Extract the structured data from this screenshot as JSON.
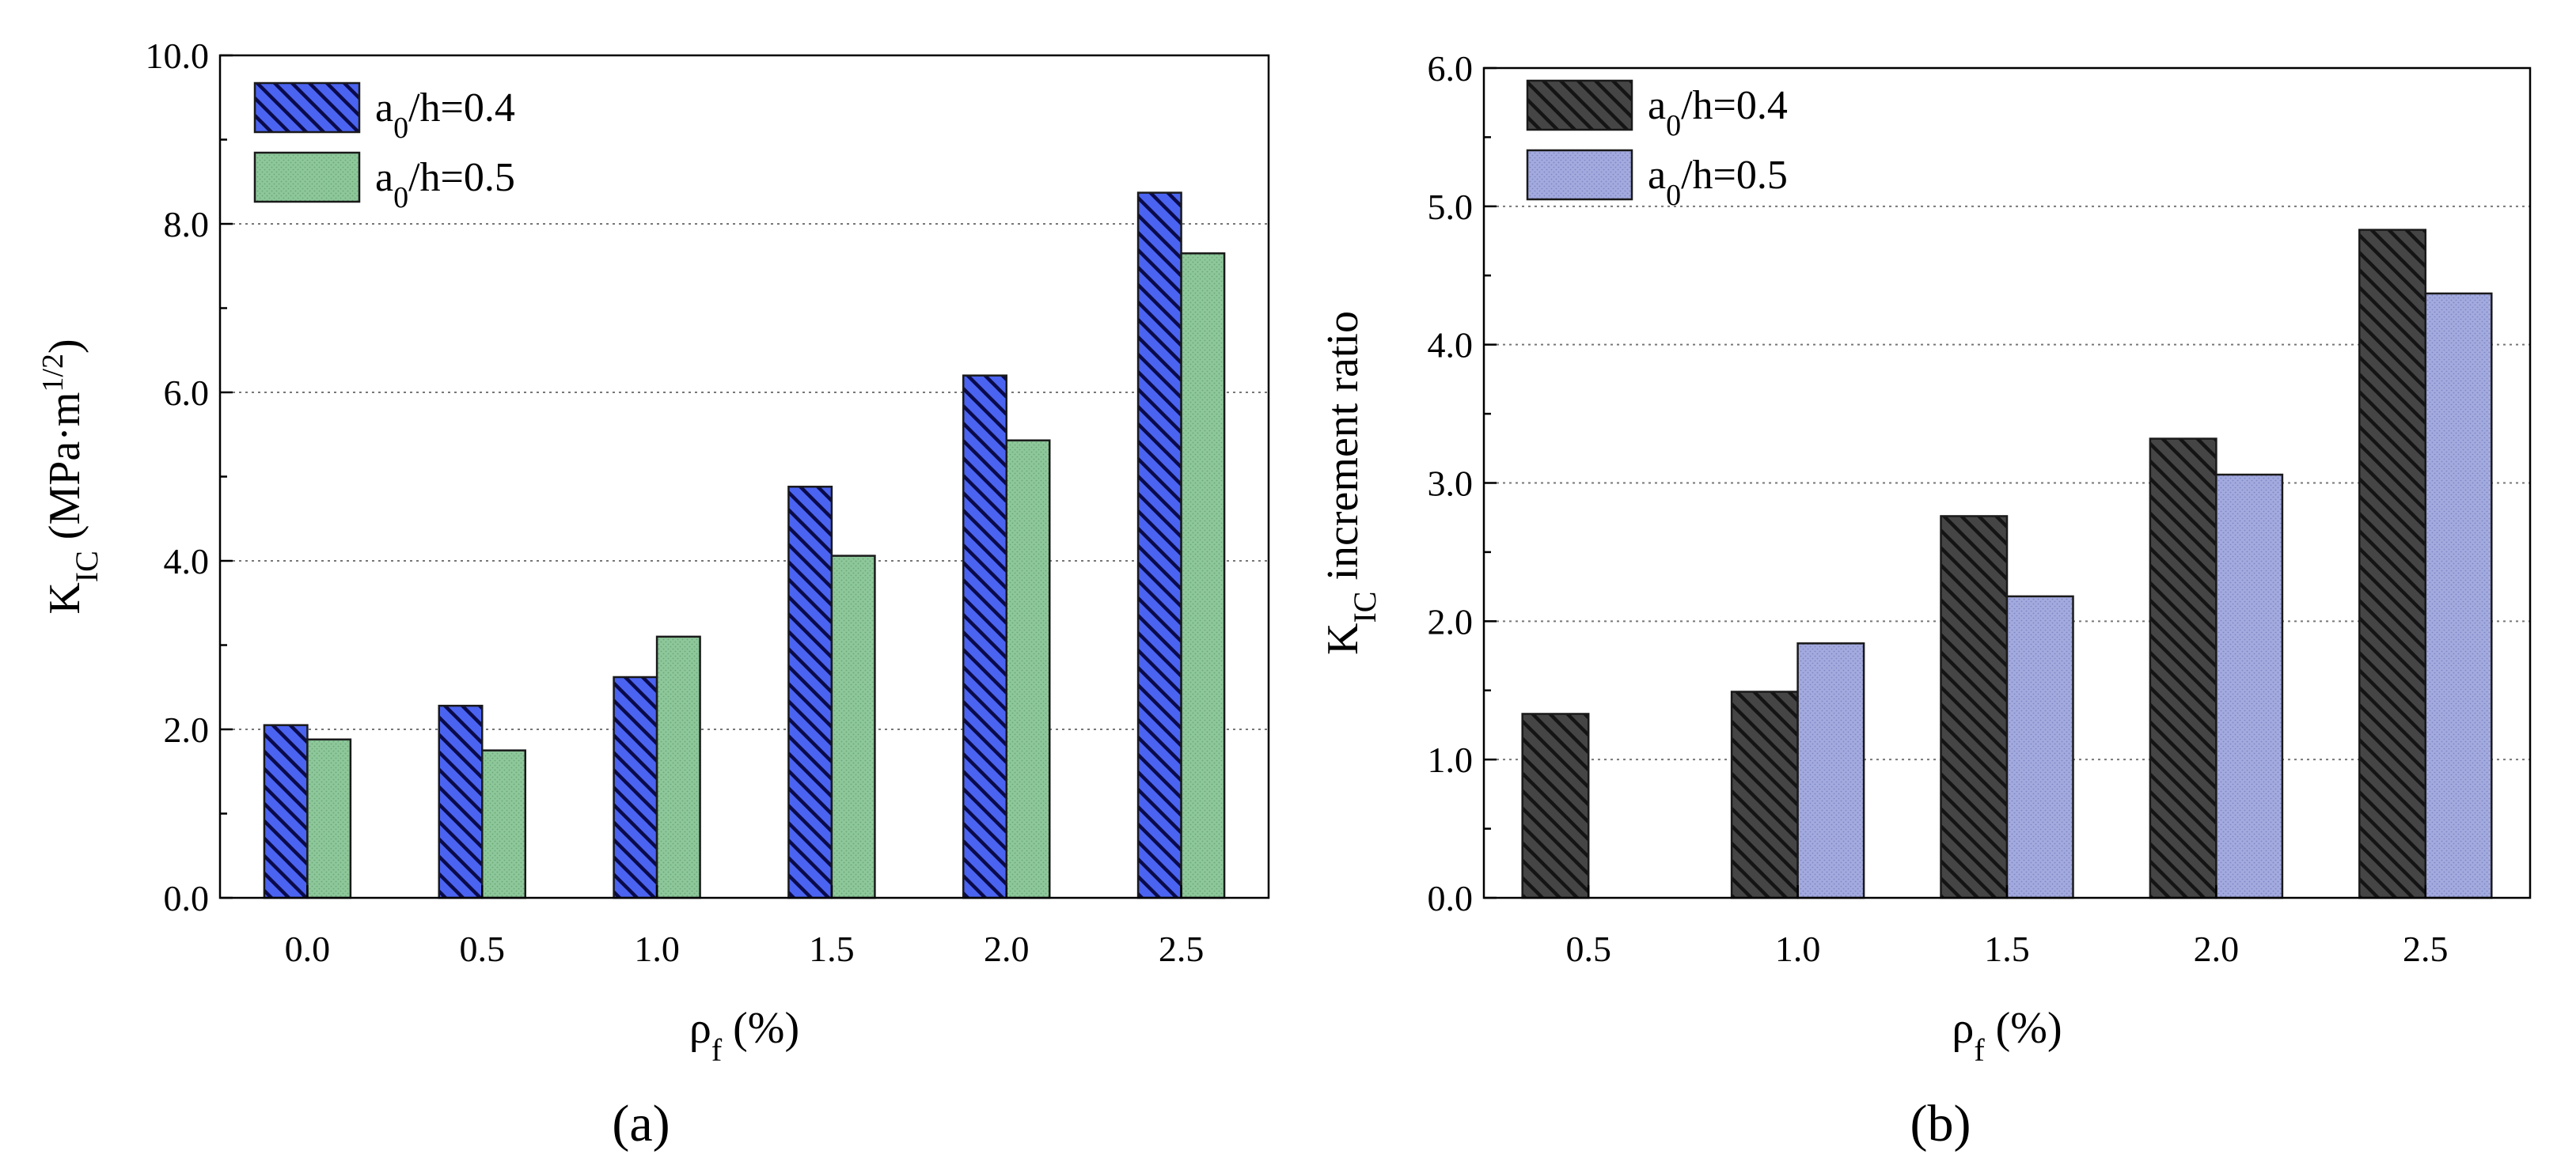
{
  "chart_data": [
    {
      "type": "bar",
      "panel_label": "a",
      "categories": [
        "0.0",
        "0.5",
        "1.0",
        "1.5",
        "2.0",
        "2.5"
      ],
      "series": [
        {
          "name": "a0/h=0.4",
          "legend": {
            "base": "a",
            "sub": "0",
            "rest": "/h=0.4"
          },
          "values": [
            2.05,
            2.28,
            2.62,
            4.88,
            6.2,
            8.37
          ],
          "color": "#4a63f0",
          "pattern": "diagonal-hatch"
        },
        {
          "name": "a0/h=0.5",
          "legend": {
            "base": "a",
            "sub": "0",
            "rest": "/h=0.5"
          },
          "values": [
            1.88,
            1.75,
            3.1,
            4.06,
            5.43,
            7.65
          ],
          "color": "#8dc79a",
          "pattern": "dots"
        }
      ],
      "ylim": [
        0,
        10
      ],
      "yticks": [
        "0.0",
        "2.0",
        "4.0",
        "6.0",
        "8.0",
        "10.0"
      ],
      "ylabel": {
        "base": "K",
        "sub": "IC",
        "mid": " (MPa·m",
        "sup": "1/2",
        "end": ")"
      },
      "xlabel": {
        "base": "ρ",
        "sub": "f",
        "rest": " (%)"
      },
      "grid": "horizontal-dotted",
      "legend_position": "top-left"
    },
    {
      "type": "bar",
      "panel_label": "b",
      "categories": [
        "0.5",
        "1.0",
        "1.5",
        "2.0",
        "2.5"
      ],
      "series": [
        {
          "name": "a0/h=0.4",
          "legend": {
            "base": "a",
            "sub": "0",
            "rest": "/h=0.4"
          },
          "values": [
            1.33,
            1.49,
            2.76,
            3.32,
            4.83
          ],
          "color": "#3a3a3a",
          "pattern": "diagonal-hatch"
        },
        {
          "name": "a0/h=0.5",
          "legend": {
            "base": "a",
            "sub": "0",
            "rest": "/h=0.5"
          },
          "values": [
            null,
            1.84,
            2.18,
            3.06,
            4.37
          ],
          "color": "#9ea6d9",
          "pattern": "dots"
        }
      ],
      "ylim": [
        0,
        6
      ],
      "yticks": [
        "0.0",
        "1.0",
        "2.0",
        "3.0",
        "4.0",
        "5.0",
        "6.0"
      ],
      "ylabel": {
        "base": "K",
        "sub": "IC",
        "rest": " increment ratio"
      },
      "xlabel": {
        "base": "ρ",
        "sub": "f",
        "rest": " (%)"
      },
      "grid": "horizontal-dotted",
      "legend_position": "top-left"
    }
  ],
  "panel_labels": [
    "(a)",
    "(b)"
  ]
}
